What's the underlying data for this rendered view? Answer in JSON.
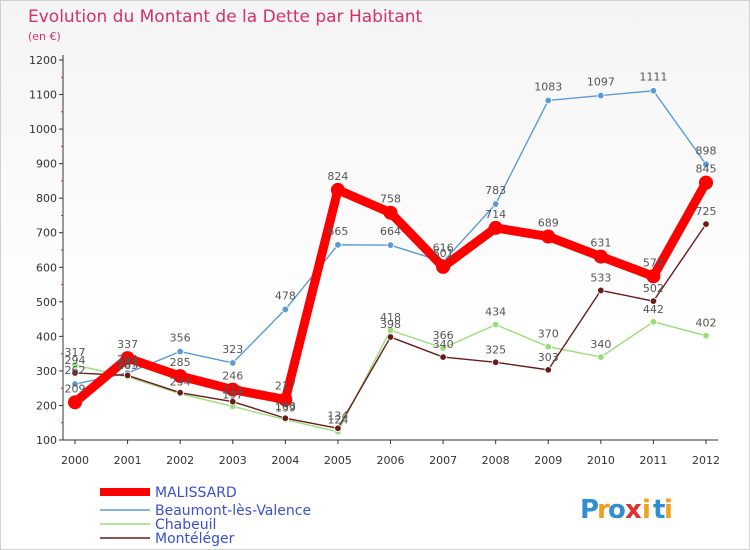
{
  "chart_data": {
    "type": "line",
    "title": "Evolution du Montant de la Dette par Habitant",
    "subtitle": "(en €)",
    "x": [
      "2000",
      "2001",
      "2002",
      "2003",
      "2004",
      "2005",
      "2006",
      "2007",
      "2008",
      "2009",
      "2010",
      "2011",
      "2012"
    ],
    "ylim": [
      100,
      1200
    ],
    "yticks": [
      100,
      200,
      300,
      400,
      500,
      600,
      700,
      800,
      900,
      1000,
      1100,
      1200
    ],
    "grid": false,
    "legend_position": "bottom-left",
    "series": [
      {
        "name": "MALISSARD",
        "color": "#ff0000",
        "values": [
          209,
          337,
          285,
          246,
          217,
          824,
          758,
          601,
          714,
          689,
          631,
          574,
          845
        ]
      },
      {
        "name": "Beaumont-lès-Valence",
        "color": "#5a9bd5",
        "values": [
          262,
          294,
          356,
          323,
          478,
          665,
          664,
          616,
          783,
          1083,
          1097,
          1111,
          898
        ]
      },
      {
        "name": "Chabeuil",
        "color": "#99dd77",
        "values": [
          317,
          283,
          234,
          197,
          159,
          124,
          418,
          366,
          434,
          370,
          340,
          442,
          402
        ]
      },
      {
        "name": "Montéléger",
        "color": "#6b1a1a",
        "values": [
          294,
          287,
          237,
          211,
          163,
          134,
          398,
          340,
          325,
          303,
          533,
          502,
          725
        ]
      }
    ],
    "labels": [
      [
        "209",
        "337",
        "285",
        "246",
        "217",
        "824",
        "758",
        "601",
        "714",
        "689",
        "631",
        "574",
        "845"
      ],
      [
        "262",
        "294",
        "356",
        "323",
        "478",
        "665",
        "664",
        "616",
        "783",
        "1083",
        "1097",
        "1111",
        "898"
      ],
      [
        "317",
        "",
        "",
        "",
        "",
        "",
        "418",
        "366",
        "434",
        "370",
        "340",
        "442",
        "402"
      ],
      [
        "294",
        "",
        "",
        "",
        "",
        "134",
        "398",
        "340",
        "325",
        "303",
        "533",
        "502",
        "725"
      ]
    ],
    "overlap_labels": [
      "287",
      "234",
      "197",
      "159",
      "124",
      "211",
      "163",
      "283"
    ]
  },
  "logo": {
    "letters": [
      "P",
      "r",
      "o",
      "x",
      "i",
      "t",
      "i"
    ],
    "colors": [
      "#2f8fd0",
      "#f0a020",
      "#2f8fd0",
      "#e03030",
      "#f0a020",
      "#2f8fd0",
      "#f0a020"
    ]
  }
}
